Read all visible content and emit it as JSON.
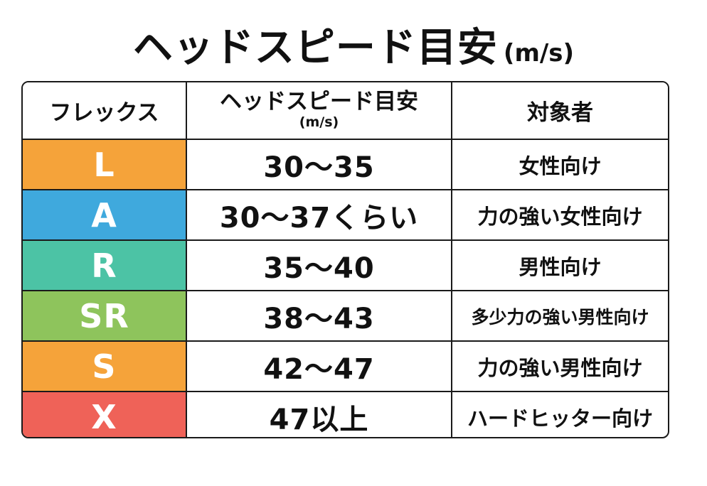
{
  "title": {
    "main": "ヘッドスピード目安",
    "unit": "(m/s)"
  },
  "table": {
    "headers": {
      "flex": "フレックス",
      "speed": "ヘッドスピード目安",
      "speed_unit": "(m/s)",
      "target": "対象者"
    },
    "rows": [
      {
        "flex": "L",
        "color": "#f5a33a",
        "speed": "30～35",
        "target": "女性向け"
      },
      {
        "flex": "A",
        "color": "#3fa9dd",
        "speed": "30～37くらい",
        "target": "力の強い女性向け"
      },
      {
        "flex": "R",
        "color": "#4cc3a5",
        "speed": "35～40",
        "target": "男性向け"
      },
      {
        "flex": "SR",
        "color": "#8ec45c",
        "speed": "38～43",
        "target": "多少力の強い男性向け"
      },
      {
        "flex": "S",
        "color": "#f5a33a",
        "speed": "42～47",
        "target": "力の強い男性向け"
      },
      {
        "flex": "X",
        "color": "#ef6258",
        "speed": "47以上",
        "target": "ハードヒッター向け"
      }
    ]
  }
}
